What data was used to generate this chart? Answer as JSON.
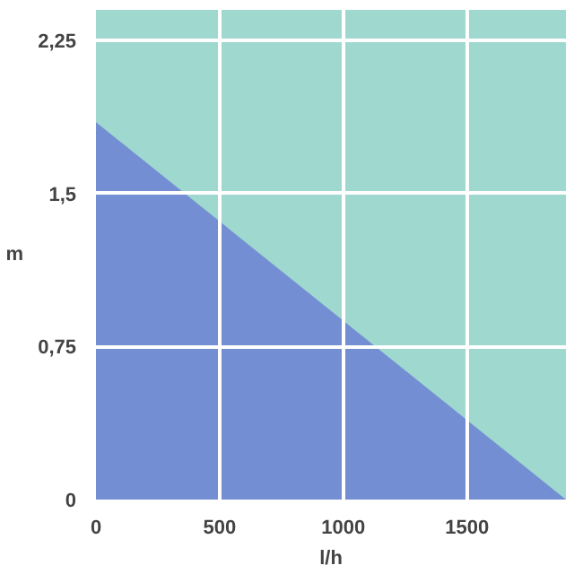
{
  "chart_data": {
    "type": "area",
    "xlabel": "l/h",
    "ylabel": "m",
    "x": [
      0,
      1900
    ],
    "series": [
      {
        "color": "#6f86d4",
        "values": [
          1.85,
          0
        ]
      }
    ],
    "xlim": [
      0,
      1900
    ],
    "ylim": [
      0,
      2.4
    ],
    "xticks": [
      0,
      500,
      1000,
      1500
    ],
    "yticks": [
      {
        "value": 0,
        "label": "0"
      },
      {
        "value": 0.75,
        "label": "0,75"
      },
      {
        "value": 1.5,
        "label": "1,5"
      },
      {
        "value": 2.25,
        "label": "2,25"
      }
    ],
    "grid": true
  }
}
